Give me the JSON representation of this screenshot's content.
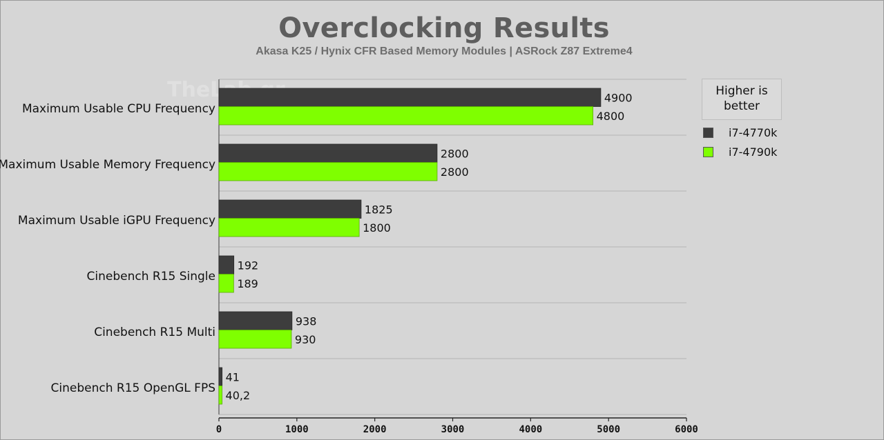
{
  "chart_data": {
    "type": "bar",
    "orientation": "horizontal",
    "title": "Overclocking Results",
    "subtitle": "Akasa K25 / Hynix CFR Based Memory Modules | ASRock Z87 Extreme4",
    "watermark": "TheLab.gr",
    "categories": [
      "Maximum Usable CPU Frequency",
      "Maximum Usable Memory Frequency",
      "Maximum Usable iGPU Frequency",
      "Cinebench R15 Single",
      "Cinebench R15 Multi",
      "Cinebench R15 OpenGL FPS"
    ],
    "series": [
      {
        "name": "i7-4770k",
        "color": "#3d3d3d",
        "values": [
          4900,
          2800,
          1825,
          192,
          938,
          41
        ],
        "labels": [
          "4900",
          "2800",
          "1825",
          "192",
          "938",
          "41"
        ]
      },
      {
        "name": "i7-4790k",
        "color": "#7fff00",
        "values": [
          4800,
          2800,
          1800,
          189,
          930,
          40.2
        ],
        "labels": [
          "4800",
          "2800",
          "1800",
          "189",
          "930",
          "40,2"
        ]
      }
    ],
    "xlim": [
      0,
      6000
    ],
    "xticks": [
      0,
      1000,
      2000,
      3000,
      4000,
      5000,
      6000
    ],
    "grid": "horizontal separators",
    "legend_title": "Higher is better",
    "legend_position": "right"
  }
}
